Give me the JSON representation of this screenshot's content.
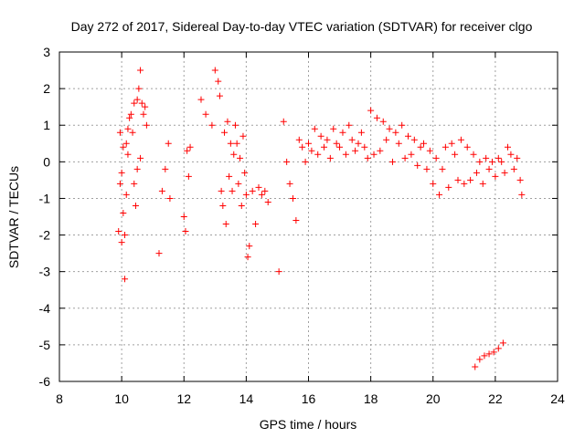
{
  "chart_data": {
    "type": "scatter",
    "title": "Day 272 of 2017, Sidereal Day-to-day VTEC variation (SDTVAR) for receiver clgo",
    "xlabel": "GPS time / hours",
    "ylabel": "SDTVAR / TECUs",
    "xlim": [
      8,
      24
    ],
    "ylim": [
      -6,
      3
    ],
    "xticks": [
      "8",
      "10",
      "12",
      "14",
      "16",
      "18",
      "20",
      "22",
      "24"
    ],
    "yticks": [
      "3",
      "2",
      "1",
      "0",
      "-1",
      "-2",
      "-3",
      "-4",
      "-5",
      "-6"
    ],
    "grid": true,
    "marker": "+",
    "color": "#ff0000",
    "series": [
      {
        "name": "SDTVAR",
        "x": [
          9.9,
          9.95,
          9.95,
          10.0,
          10.0,
          10.05,
          10.05,
          10.1,
          10.1,
          10.15,
          10.15,
          10.2,
          10.2,
          10.25,
          10.3,
          10.35,
          10.4,
          10.45,
          10.5,
          10.55,
          10.6,
          10.65,
          10.7,
          10.75,
          10.8,
          10.4,
          10.5,
          10.6,
          11.2,
          11.3,
          11.4,
          11.5,
          11.55,
          12.0,
          12.05,
          12.1,
          12.15,
          12.2,
          12.55,
          12.7,
          12.9,
          13.0,
          13.1,
          13.15,
          13.2,
          13.25,
          13.3,
          13.35,
          13.4,
          13.45,
          13.5,
          13.55,
          13.6,
          13.65,
          13.7,
          13.75,
          13.8,
          13.85,
          13.9,
          13.95,
          14.0,
          14.05,
          14.1,
          14.2,
          14.3,
          14.4,
          14.5,
          14.6,
          14.7,
          15.05,
          15.2,
          15.3,
          15.4,
          15.5,
          15.6,
          15.7,
          15.8,
          15.9,
          16.0,
          16.1,
          16.2,
          16.3,
          16.4,
          16.5,
          16.6,
          16.7,
          16.8,
          16.9,
          17.0,
          17.1,
          17.2,
          17.3,
          17.4,
          17.5,
          17.6,
          17.7,
          17.8,
          17.9,
          18.0,
          18.1,
          18.2,
          18.3,
          18.4,
          18.5,
          18.6,
          18.7,
          18.8,
          18.9,
          19.0,
          19.1,
          19.2,
          19.3,
          19.4,
          19.5,
          19.6,
          19.7,
          19.8,
          19.9,
          20.0,
          20.1,
          20.2,
          20.3,
          20.4,
          20.5,
          20.6,
          20.7,
          20.8,
          20.9,
          21.0,
          21.1,
          21.2,
          21.3,
          21.4,
          21.5,
          21.6,
          21.7,
          21.8,
          21.9,
          22.0,
          22.1,
          22.2,
          22.3,
          22.4,
          22.5,
          22.6,
          22.7,
          22.8,
          22.85,
          21.35,
          21.5,
          21.65,
          21.8,
          21.95,
          22.1,
          22.25
        ],
        "y": [
          -1.9,
          -0.6,
          0.8,
          -2.2,
          -0.3,
          -1.4,
          0.4,
          -3.2,
          -2.0,
          -0.9,
          0.5,
          0.2,
          0.9,
          1.2,
          1.3,
          0.8,
          1.6,
          -1.2,
          1.7,
          2.0,
          2.5,
          1.6,
          1.3,
          1.5,
          1.0,
          -0.6,
          -0.2,
          0.1,
          -2.5,
          -0.8,
          -0.2,
          0.5,
          -1.0,
          -1.5,
          -1.9,
          0.3,
          -0.4,
          0.4,
          1.7,
          1.3,
          1.0,
          2.5,
          2.2,
          1.8,
          -0.8,
          -1.2,
          0.8,
          -1.7,
          1.1,
          -0.4,
          0.5,
          -0.8,
          0.2,
          1.0,
          0.5,
          -0.6,
          0.1,
          -1.2,
          0.7,
          -0.3,
          -0.9,
          -2.6,
          -2.3,
          -0.8,
          -1.7,
          -0.7,
          -0.9,
          -0.8,
          -1.1,
          -3.0,
          1.1,
          0.0,
          -0.6,
          -1.0,
          -1.6,
          0.6,
          0.4,
          0.0,
          0.5,
          0.3,
          0.9,
          0.2,
          0.7,
          0.4,
          0.6,
          0.1,
          0.9,
          0.5,
          0.4,
          0.8,
          0.2,
          1.0,
          0.6,
          0.3,
          0.5,
          0.8,
          0.4,
          0.1,
          1.4,
          0.2,
          1.2,
          0.3,
          1.1,
          0.6,
          0.9,
          0.0,
          0.8,
          0.5,
          1.0,
          0.1,
          0.7,
          0.2,
          0.6,
          -0.1,
          0.4,
          0.5,
          -0.2,
          0.3,
          -0.6,
          0.1,
          -0.9,
          -0.2,
          0.4,
          -0.7,
          0.5,
          0.2,
          -0.5,
          0.6,
          -0.6,
          0.4,
          -0.5,
          0.2,
          -0.3,
          0.0,
          -0.6,
          0.1,
          -0.2,
          0.0,
          -0.4,
          0.1,
          0.0,
          -0.3,
          0.4,
          0.2,
          -0.2,
          0.1,
          -0.5,
          -0.9,
          -5.6,
          -5.4,
          -5.3,
          -5.25,
          -5.2,
          -5.1,
          -4.95
        ]
      }
    ]
  }
}
